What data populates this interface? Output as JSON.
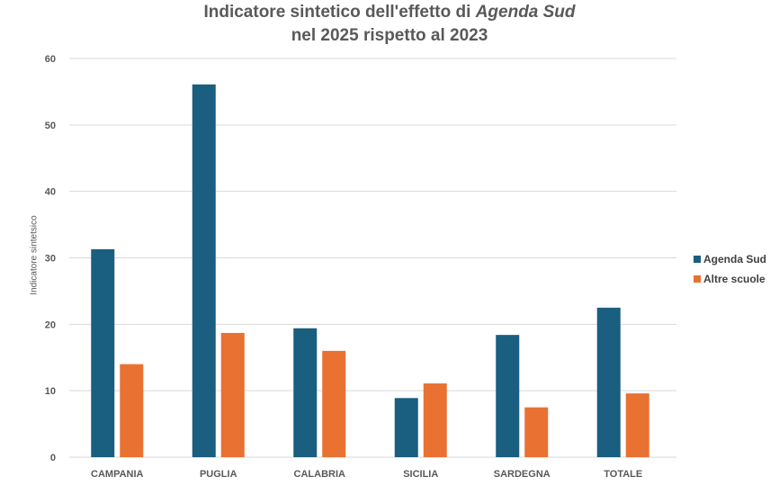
{
  "chart_data": {
    "type": "bar",
    "title_line1_prefix": "Indicatore sintetico dell'effetto di ",
    "title_line1_italic": "Agenda Sud",
    "title_line2": "nel 2025 rispetto al 2023",
    "xlabel": "",
    "ylabel": "Indicatore sintetsico",
    "ylim": [
      0,
      60
    ],
    "yticks": [
      0,
      10,
      20,
      30,
      40,
      50,
      60
    ],
    "grid": true,
    "legend_position": "right",
    "categories": [
      "CAMPANIA",
      "PUGLIA",
      "CALABRIA",
      "SICILIA",
      "SARDEGNA",
      "TOTALE"
    ],
    "series": [
      {
        "name": "Agenda Sud",
        "color": "#1a5e80",
        "values": [
          31.3,
          56.1,
          19.4,
          8.9,
          18.4,
          22.5
        ]
      },
      {
        "name": "Altre scuole",
        "color": "#e97132",
        "values": [
          14.0,
          18.7,
          16.0,
          11.1,
          7.5,
          9.6
        ]
      }
    ]
  }
}
